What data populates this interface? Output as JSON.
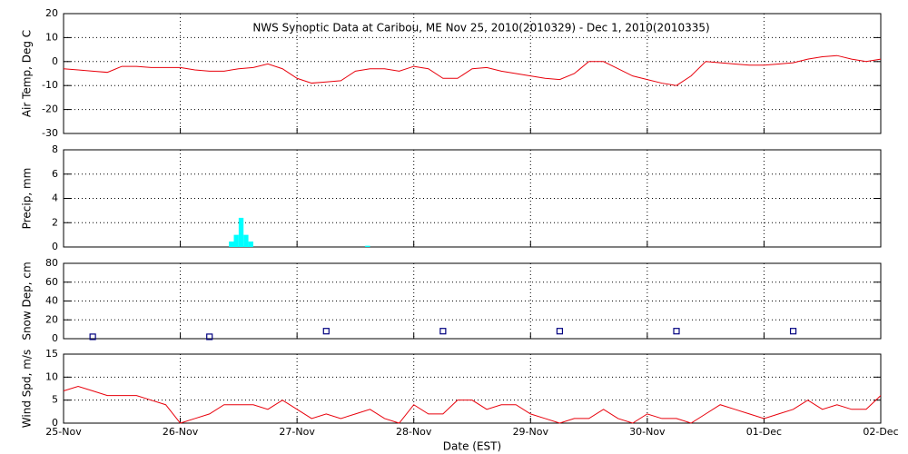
{
  "chart_data": [
    {
      "type": "line",
      "title": "NWS Synoptic Data at Caribou, ME   Nov 25, 2010(2010329) - Dec  1, 2010(2010335)",
      "ylabel": "Air Temp, Deg C",
      "color": "#e8000b",
      "x": [
        0,
        3,
        6,
        9,
        12,
        15,
        18,
        21,
        24,
        27,
        30,
        33,
        36,
        39,
        42,
        45,
        48,
        51,
        54,
        57,
        60,
        63,
        66,
        69,
        72,
        75,
        78,
        81,
        84,
        87,
        90,
        93,
        96,
        99,
        102,
        105,
        108,
        111,
        114,
        117,
        120,
        123,
        126,
        129,
        132,
        135,
        138,
        141,
        144,
        147,
        150,
        153,
        156,
        159,
        162,
        165,
        168
      ],
      "values": [
        -3,
        -3.5,
        -4,
        -4.5,
        -2,
        -2,
        -2.5,
        -2.5,
        -2.5,
        -3.5,
        -4,
        -4,
        -3,
        -2.5,
        -1,
        -3,
        -7,
        -9,
        -8.5,
        -8,
        -4,
        -3,
        -3,
        -4,
        -2,
        -3,
        -7,
        -7,
        -3,
        -2.5,
        -4,
        -5,
        -6,
        -7,
        -7.5,
        -5,
        0,
        0,
        -3,
        -6,
        -7.5,
        -9,
        -10,
        -6,
        0,
        -0.5,
        -1,
        -1.5,
        -1.5,
        -1,
        -0.5,
        1,
        2,
        2.5,
        1,
        0,
        1
      ],
      "xlim": [
        0,
        168
      ],
      "ylim": [
        -30,
        20
      ],
      "yticks": [
        -30,
        -20,
        -10,
        0,
        10,
        20
      ],
      "grid": true
    },
    {
      "type": "bar",
      "ylabel": "Precip, mm",
      "color": "#00ffff",
      "x": [
        34,
        35,
        36,
        37,
        38,
        62
      ],
      "values": [
        0.45,
        1,
        2.4,
        1,
        0.45,
        0.1
      ],
      "xlim": [
        0,
        168
      ],
      "ylim": [
        0,
        8
      ],
      "yticks": [
        0,
        2,
        4,
        6,
        8
      ],
      "grid": true
    },
    {
      "type": "scatter",
      "ylabel": "Snow Dep, cm",
      "color": "#000080",
      "x": [
        6,
        30,
        54,
        78,
        102,
        126,
        150
      ],
      "values": [
        2,
        2,
        8,
        8,
        8,
        8,
        8
      ],
      "xlim": [
        0,
        168
      ],
      "ylim": [
        0,
        80
      ],
      "yticks": [
        0,
        20,
        40,
        60,
        80
      ],
      "grid": true
    },
    {
      "type": "line",
      "ylabel": "Wind Spd, m/s",
      "xlabel": "Date (EST)",
      "color": "#e8000b",
      "x": [
        0,
        3,
        6,
        9,
        12,
        15,
        18,
        21,
        24,
        27,
        30,
        33,
        36,
        39,
        42,
        45,
        48,
        51,
        54,
        57,
        60,
        63,
        66,
        69,
        72,
        75,
        78,
        81,
        84,
        87,
        90,
        93,
        96,
        99,
        102,
        105,
        108,
        111,
        114,
        117,
        120,
        123,
        126,
        129,
        132,
        135,
        138,
        141,
        144,
        147,
        150,
        153,
        156,
        159,
        162,
        165,
        168
      ],
      "values": [
        7,
        8,
        7,
        6,
        6,
        6,
        5,
        4,
        0,
        1,
        2,
        4,
        4,
        4,
        3,
        5,
        3,
        1,
        2,
        1,
        2,
        3,
        1,
        0,
        4,
        2,
        2,
        5,
        5,
        3,
        4,
        4,
        2,
        1,
        0,
        1,
        1,
        3,
        1,
        0,
        2,
        1,
        1,
        0,
        2,
        4,
        3,
        2,
        1,
        2,
        3,
        5,
        3,
        4,
        3,
        3,
        6
      ],
      "xlim": [
        0,
        168
      ],
      "ylim": [
        0,
        15
      ],
      "yticks": [
        0,
        5,
        10,
        15
      ],
      "grid": true,
      "xticks": [
        {
          "value": 0,
          "label": "25-Nov"
        },
        {
          "value": 24,
          "label": "26-Nov"
        },
        {
          "value": 48,
          "label": "27-Nov"
        },
        {
          "value": 72,
          "label": "28-Nov"
        },
        {
          "value": 96,
          "label": "29-Nov"
        },
        {
          "value": 120,
          "label": "30-Nov"
        },
        {
          "value": 144,
          "label": "01-Dec"
        },
        {
          "value": 168,
          "label": "02-Dec"
        }
      ]
    }
  ]
}
